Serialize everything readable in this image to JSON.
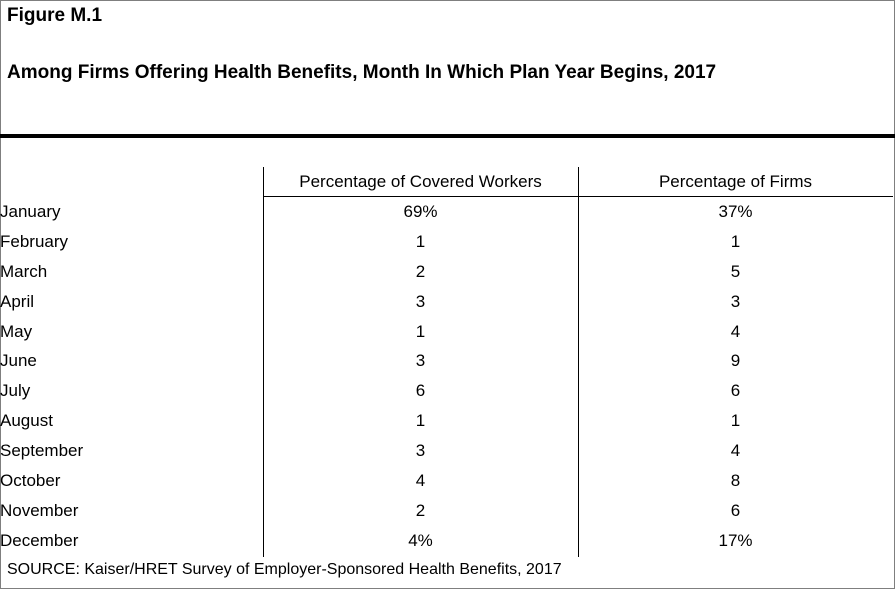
{
  "figure_label": "Figure M.1",
  "title": "Among Firms Offering Health Benefits, Month In Which Plan Year Begins, 2017",
  "columns": {
    "workers": "Percentage of Covered Workers",
    "firms": "Percentage of Firms"
  },
  "rows": [
    {
      "month": "January",
      "workers": "69%",
      "firms": "37%"
    },
    {
      "month": "February",
      "workers": "1",
      "firms": "1"
    },
    {
      "month": "March",
      "workers": "2",
      "firms": "5"
    },
    {
      "month": "April",
      "workers": "3",
      "firms": "3"
    },
    {
      "month": "May",
      "workers": "1",
      "firms": "4"
    },
    {
      "month": "June",
      "workers": "3",
      "firms": "9"
    },
    {
      "month": "July",
      "workers": "6",
      "firms": "6"
    },
    {
      "month": "August",
      "workers": "1",
      "firms": "1"
    },
    {
      "month": "September",
      "workers": "3",
      "firms": "4"
    },
    {
      "month": "October",
      "workers": "4",
      "firms": "8"
    },
    {
      "month": "November",
      "workers": "2",
      "firms": "6"
    },
    {
      "month": "December",
      "workers": "4%",
      "firms": "17%"
    }
  ],
  "source": "SOURCE: Kaiser/HRET Survey of Employer-Sponsored Health Benefits, 2017"
}
